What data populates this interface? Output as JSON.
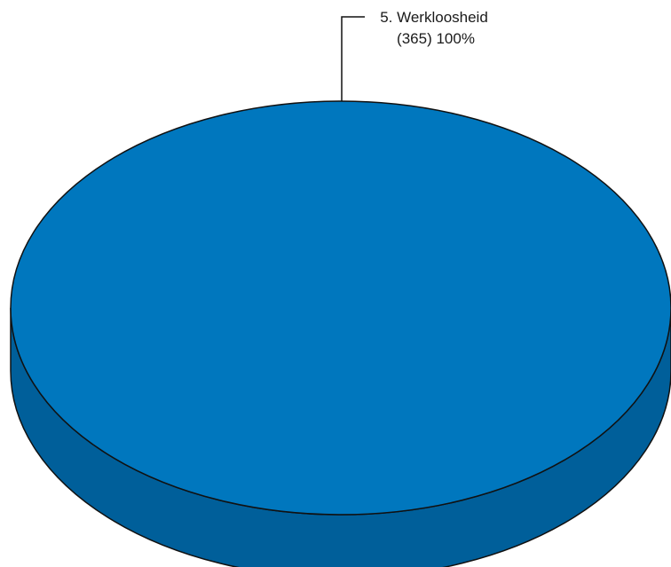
{
  "chart_data": {
    "type": "pie",
    "style": "3d",
    "slices": [
      {
        "label": "5. Werkloosheid",
        "count": 365,
        "percent": 100,
        "value_text": "(365) 100%",
        "color": "#0077be",
        "side_color": "#005f9a"
      }
    ]
  }
}
